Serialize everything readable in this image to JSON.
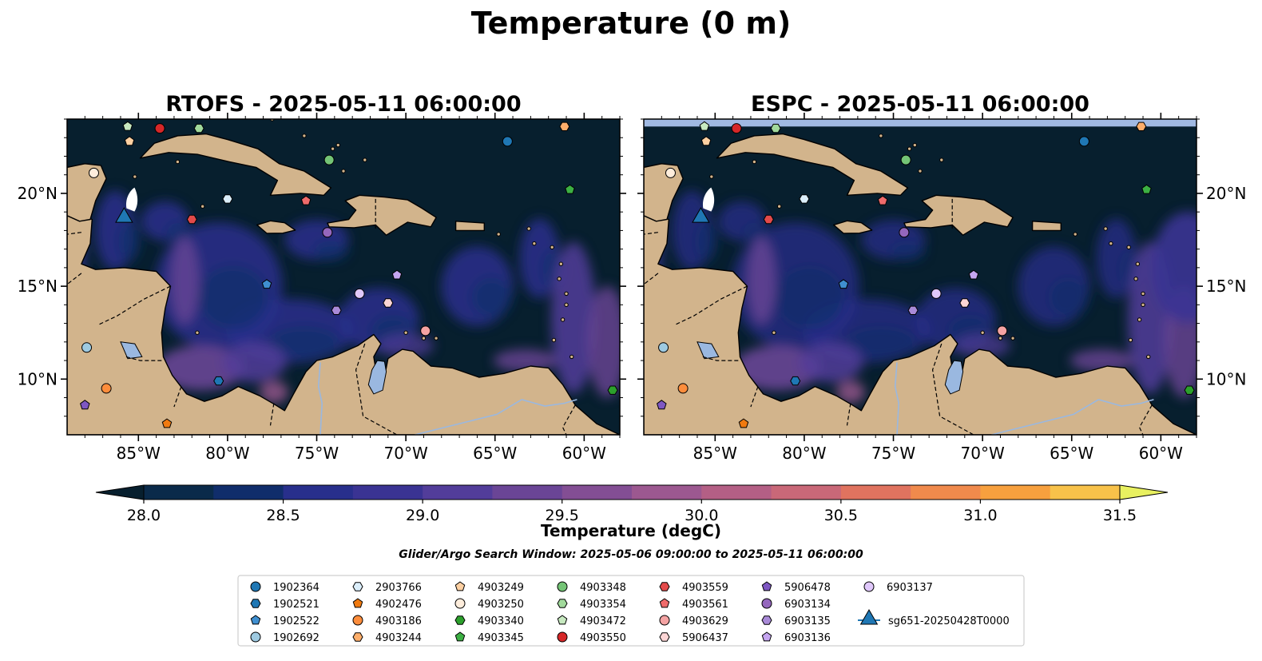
{
  "figure": {
    "suptitle": "Temperature (0 m)",
    "search_window": "Glider/Argo Search Window: 2025-05-06 09:00:00 to 2025-05-11 06:00:00"
  },
  "panels": [
    {
      "title": "RTOFS - 2025-05-11 06:00:00",
      "model": "RTOFS"
    },
    {
      "title": "ESPC - 2025-05-11 06:00:00",
      "model": "ESPC"
    }
  ],
  "map": {
    "lon_range": [
      -89,
      -58
    ],
    "lat_range": [
      7,
      24
    ],
    "x_ticks": [
      {
        "v": -85,
        "label": "85°W"
      },
      {
        "v": -80,
        "label": "80°W"
      },
      {
        "v": -75,
        "label": "75°W"
      },
      {
        "v": -70,
        "label": "70°W"
      },
      {
        "v": -65,
        "label": "65°W"
      },
      {
        "v": -60,
        "label": "60°W"
      }
    ],
    "y_ticks": [
      {
        "v": 10,
        "label": "10°N"
      },
      {
        "v": 15,
        "label": "15°N"
      },
      {
        "v": 20,
        "label": "20°N"
      }
    ],
    "colors": {
      "land": "#d2b48c",
      "lake": "#9ab8e0",
      "ocean_base": "#071f2e",
      "espc_missing": "#a0b9e2"
    }
  },
  "chart_data": {
    "type": "heatmap",
    "title": "Temperature (0 m)",
    "colorbar": {
      "label": "Temperature (degC)",
      "range": [
        28.0,
        31.5
      ],
      "step": 0.25,
      "extend": "both",
      "ticks": [
        "28.0",
        "28.5",
        "29.0",
        "29.5",
        "30.0",
        "30.5",
        "31.0",
        "31.5"
      ],
      "colors": [
        "#071f2e",
        "#0a2a4a",
        "#102d6b",
        "#282f8c",
        "#3a3393",
        "#523d9a",
        "#6a4596",
        "#834e94",
        "#9c5890",
        "#b45f85",
        "#c96878",
        "#e0735f",
        "#f08a4c",
        "#f7a03e",
        "#f8c24a",
        "#f4e060",
        "#e8f060"
      ]
    },
    "observations": [
      {
        "id": "1902364",
        "shape": "circle",
        "color": "#1f77b4",
        "lon": -64.3,
        "lat": 22.8
      },
      {
        "id": "1902521",
        "shape": "hexagon",
        "color": "#1f77b4",
        "lon": -80.5,
        "lat": 9.9
      },
      {
        "id": "1902522",
        "shape": "pentagon",
        "color": "#3f8fd0",
        "lon": -77.8,
        "lat": 15.1
      },
      {
        "id": "1902692",
        "shape": "circle",
        "color": "#9ecae1",
        "lon": -87.9,
        "lat": 11.7
      },
      {
        "id": "2903766",
        "shape": "hexagon",
        "color": "#dbeefa",
        "lon": -80.0,
        "lat": 19.7
      },
      {
        "id": "4902476",
        "shape": "pentagon",
        "color": "#f07a10",
        "lon": -83.4,
        "lat": 7.6
      },
      {
        "id": "4903186",
        "shape": "circle",
        "color": "#fd8d3c",
        "lon": -86.8,
        "lat": 9.5
      },
      {
        "id": "4903244",
        "shape": "hexagon",
        "color": "#fdae6b",
        "lon": -61.1,
        "lat": 23.6
      },
      {
        "id": "4903249",
        "shape": "pentagon",
        "color": "#fdd0a2",
        "lon": -85.5,
        "lat": 22.8
      },
      {
        "id": "4903250",
        "shape": "circle",
        "color": "#feeddc",
        "lon": -87.5,
        "lat": 21.1
      },
      {
        "id": "4903340",
        "shape": "hexagon",
        "color": "#2ca02c",
        "lon": -58.4,
        "lat": 9.4
      },
      {
        "id": "4903345",
        "shape": "pentagon",
        "color": "#3cb043",
        "lon": -60.8,
        "lat": 20.2
      },
      {
        "id": "4903348",
        "shape": "circle",
        "color": "#74c476",
        "lon": -74.3,
        "lat": 21.8
      },
      {
        "id": "4903354",
        "shape": "hexagon",
        "color": "#a1d99b",
        "lon": -81.6,
        "lat": 23.5
      },
      {
        "id": "4903472",
        "shape": "pentagon",
        "color": "#c7e9c0",
        "lon": -85.6,
        "lat": 23.6
      },
      {
        "id": "4903550",
        "shape": "circle",
        "color": "#d62728",
        "lon": -83.8,
        "lat": 23.5
      },
      {
        "id": "4903559",
        "shape": "hexagon",
        "color": "#e34a4a",
        "lon": -82.0,
        "lat": 18.6
      },
      {
        "id": "4903561",
        "shape": "pentagon",
        "color": "#ef6b6b",
        "lon": -75.6,
        "lat": 19.6
      },
      {
        "id": "4903629",
        "shape": "circle",
        "color": "#f4a3a3",
        "lon": -68.9,
        "lat": 12.6
      },
      {
        "id": "5906437",
        "shape": "hexagon",
        "color": "#fcd5d5",
        "lon": -71.0,
        "lat": 14.1
      },
      {
        "id": "5906478",
        "shape": "pentagon",
        "color": "#7e57c2",
        "lon": -88.0,
        "lat": 8.6
      },
      {
        "id": "6903134",
        "shape": "circle",
        "color": "#9467bd",
        "lon": -74.4,
        "lat": 17.9
      },
      {
        "id": "6903135",
        "shape": "hexagon",
        "color": "#a98ad8",
        "lon": -73.9,
        "lat": 13.7
      },
      {
        "id": "6903136",
        "shape": "pentagon",
        "color": "#c5a5f0",
        "lon": -70.5,
        "lat": 15.6
      },
      {
        "id": "6903137",
        "shape": "circle",
        "color": "#e0c8fb",
        "lon": -72.6,
        "lat": 14.6
      },
      {
        "id": "sg651-20250428T0000",
        "shape": "triangle",
        "color": "#1f77b4",
        "lon": -85.8,
        "lat": 18.7
      }
    ]
  }
}
